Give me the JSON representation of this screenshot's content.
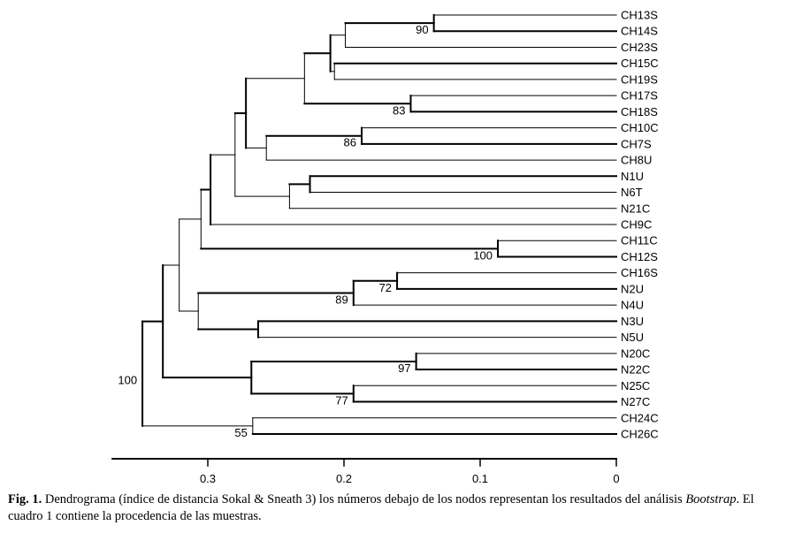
{
  "figure": {
    "leaves": [
      "CH13S",
      "CH14S",
      "CH23S",
      "CH15C",
      "CH19S",
      "CH17S",
      "CH18S",
      "CH10C",
      "CH7S",
      "CH8U",
      "N1U",
      "N6T",
      "N21C",
      "CH9C",
      "CH11C",
      "CH12S",
      "CH16S",
      "N2U",
      "N4U",
      "N3U",
      "N5U",
      "N20C",
      "N22C",
      "N25C",
      "N27C",
      "CH24C",
      "CH26C"
    ],
    "axis": {
      "ticks": [
        0.3,
        0.2,
        0.1,
        0
      ],
      "tick_labels": [
        "0.3",
        "0.2",
        "0.1",
        "0"
      ],
      "range": [
        0.37,
        0
      ]
    },
    "bootstrap_values": [
      "90",
      "83",
      "86",
      "100",
      "72",
      "89",
      "97",
      "77",
      "100",
      "55"
    ]
  },
  "chart_data": {
    "type": "dendrogram",
    "method": "Sokal & Sneath 3",
    "x_axis_range": [
      0.37,
      0
    ],
    "nodes": [
      {
        "id": "a1",
        "children": [
          "CH13S",
          "CH14S"
        ],
        "height": 0.134,
        "bootstrap": 90
      },
      {
        "id": "a2",
        "children": [
          "a1",
          "CH23S"
        ],
        "height": 0.199
      },
      {
        "id": "a3",
        "children": [
          "CH15C",
          "CH19S"
        ],
        "height": 0.207
      },
      {
        "id": "a4",
        "children": [
          "a2",
          "a3"
        ],
        "height": 0.21
      },
      {
        "id": "a5",
        "children": [
          "CH17S",
          "CH18S"
        ],
        "height": 0.151,
        "bootstrap": 83
      },
      {
        "id": "a6",
        "children": [
          "a4",
          "a5"
        ],
        "height": 0.229
      },
      {
        "id": "a7",
        "children": [
          "CH10C",
          "CH7S"
        ],
        "height": 0.187,
        "bootstrap": 86
      },
      {
        "id": "a8",
        "children": [
          "a7",
          "CH8U"
        ],
        "height": 0.257
      },
      {
        "id": "a9",
        "children": [
          "a6",
          "a8"
        ],
        "height": 0.272
      },
      {
        "id": "b1",
        "children": [
          "N1U",
          "N6T"
        ],
        "height": 0.225
      },
      {
        "id": "b2",
        "children": [
          "b1",
          "N21C"
        ],
        "height": 0.24
      },
      {
        "id": "b3",
        "children": [
          "a9",
          "b2"
        ],
        "height": 0.28
      },
      {
        "id": "b4",
        "children": [
          "b3",
          "CH9C"
        ],
        "height": 0.298
      },
      {
        "id": "c1",
        "children": [
          "CH11C",
          "CH12S"
        ],
        "height": 0.087,
        "bootstrap": 100
      },
      {
        "id": "c2",
        "children": [
          "b4",
          "c1"
        ],
        "height": 0.305
      },
      {
        "id": "d1",
        "children": [
          "CH16S",
          "N2U"
        ],
        "height": 0.161,
        "bootstrap": 72
      },
      {
        "id": "d2",
        "children": [
          "d1",
          "N4U"
        ],
        "height": 0.193,
        "bootstrap": 89
      },
      {
        "id": "d3",
        "children": [
          "N3U",
          "N5U"
        ],
        "height": 0.263
      },
      {
        "id": "d4",
        "children": [
          "d2",
          "d3"
        ],
        "height": 0.307
      },
      {
        "id": "e1",
        "children": [
          "c2",
          "d4"
        ],
        "height": 0.321
      },
      {
        "id": "f1",
        "children": [
          "N20C",
          "N22C"
        ],
        "height": 0.147,
        "bootstrap": 97
      },
      {
        "id": "f2",
        "children": [
          "N25C",
          "N27C"
        ],
        "height": 0.193,
        "bootstrap": 77
      },
      {
        "id": "f3",
        "children": [
          "f1",
          "f2"
        ],
        "height": 0.268
      },
      {
        "id": "g1",
        "children": [
          "e1",
          "f3"
        ],
        "height": 0.333
      },
      {
        "id": "h1",
        "children": [
          "CH24C",
          "CH26C"
        ],
        "height": 0.267,
        "bootstrap": 55
      },
      {
        "id": "root",
        "children": [
          "g1",
          "h1"
        ],
        "height": 0.348,
        "bootstrap": 100
      }
    ]
  },
  "caption": {
    "label": "Fig. 1.",
    "text1": " Dendrograma (índice de distancia Sokal & Sneath 3) los números debajo de los nodos representan los resultados del análisis ",
    "italic": "Bootstrap",
    "text2": ". El cuadro 1 contiene la procedencia de las muestras."
  }
}
